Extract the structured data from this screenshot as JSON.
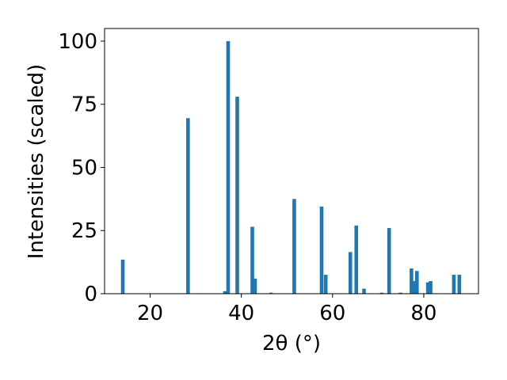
{
  "chart_data": {
    "type": "bar",
    "xlabel": "2θ (°)",
    "ylabel": "Intensities (scaled)",
    "xlim": [
      10,
      92
    ],
    "ylim": [
      0,
      105
    ],
    "xticks": [
      {
        "value": 20,
        "label": "20"
      },
      {
        "value": 40,
        "label": "40"
      },
      {
        "value": 60,
        "label": "60"
      },
      {
        "value": 80,
        "label": "80"
      }
    ],
    "yticks": [
      {
        "value": 0,
        "label": "0"
      },
      {
        "value": 25,
        "label": "25"
      },
      {
        "value": 50,
        "label": "50"
      },
      {
        "value": 75,
        "label": "75"
      },
      {
        "value": 100,
        "label": "100"
      }
    ],
    "bar_width_units": 0.8,
    "color": "#1f77b4",
    "grid": false,
    "bars": [
      {
        "x": 14.0,
        "y": 13.5
      },
      {
        "x": 28.3,
        "y": 69.5
      },
      {
        "x": 36.4,
        "y": 1.0
      },
      {
        "x": 37.1,
        "y": 100.0
      },
      {
        "x": 39.1,
        "y": 78.0
      },
      {
        "x": 42.4,
        "y": 26.5
      },
      {
        "x": 43.0,
        "y": 6.0
      },
      {
        "x": 46.5,
        "y": 0.4
      },
      {
        "x": 51.6,
        "y": 37.5
      },
      {
        "x": 57.6,
        "y": 34.5
      },
      {
        "x": 58.5,
        "y": 7.5
      },
      {
        "x": 63.9,
        "y": 16.5
      },
      {
        "x": 65.2,
        "y": 27.0
      },
      {
        "x": 66.9,
        "y": 2.0
      },
      {
        "x": 70.8,
        "y": 0.4
      },
      {
        "x": 72.4,
        "y": 26.0
      },
      {
        "x": 74.9,
        "y": 0.4
      },
      {
        "x": 77.3,
        "y": 10.0
      },
      {
        "x": 77.9,
        "y": 5.0
      },
      {
        "x": 78.5,
        "y": 9.0
      },
      {
        "x": 80.9,
        "y": 4.5
      },
      {
        "x": 81.5,
        "y": 5.0
      },
      {
        "x": 86.6,
        "y": 7.5
      },
      {
        "x": 87.8,
        "y": 7.5
      }
    ]
  }
}
